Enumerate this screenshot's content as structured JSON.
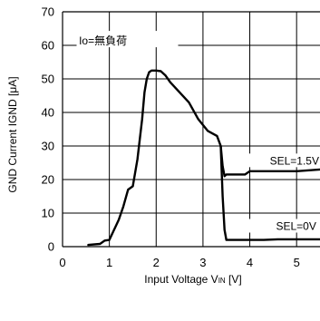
{
  "chart_data": {
    "type": "line",
    "title": "",
    "xlabel": {
      "main": "Input Voltage V",
      "sub": "IN",
      "unit": "[V]"
    },
    "ylabel": "GND Current IGND  [μA]",
    "xlim": [
      0,
      5.5
    ],
    "ylim": [
      0,
      70
    ],
    "xticks": [
      "0",
      "1",
      "2",
      "3",
      "4",
      "5"
    ],
    "yticks": [
      "0",
      "10",
      "20",
      "30",
      "40",
      "50",
      "60",
      "70"
    ],
    "grid": true,
    "annotation": "Io=無負荷",
    "series": [
      {
        "name": "SEL=1.5V",
        "x": [
          0.55,
          0.8,
          0.9,
          1.0,
          1.1,
          1.2,
          1.3,
          1.4,
          1.5,
          1.6,
          1.7,
          1.75,
          1.8,
          1.85,
          1.9,
          1.95,
          2.0,
          2.1,
          2.2,
          2.3,
          2.5,
          2.7,
          2.9,
          3.1,
          3.3,
          3.38,
          3.42,
          3.46,
          3.5,
          3.7,
          3.9,
          4.0,
          4.2,
          4.5,
          5.0,
          5.5
        ],
        "y": [
          0.5,
          0.8,
          1.8,
          2.0,
          5.0,
          8.0,
          12.0,
          17.0,
          18.0,
          26.0,
          38.0,
          46.0,
          50.0,
          52.0,
          52.5,
          52.5,
          52.5,
          52.3,
          51.0,
          49.0,
          46.0,
          43.0,
          38.0,
          34.5,
          33.0,
          30.0,
          24.0,
          21.0,
          21.5,
          21.5,
          21.5,
          22.5,
          22.5,
          22.5,
          22.5,
          23.0
        ]
      },
      {
        "name": "SEL=0V",
        "x": [
          3.38,
          3.42,
          3.46,
          3.5,
          3.7,
          4.0,
          4.3,
          4.6,
          5.0,
          5.5
        ],
        "y": [
          30.0,
          15.0,
          5.0,
          2.0,
          2.0,
          2.0,
          2.0,
          2.2,
          2.2,
          2.2
        ]
      }
    ]
  }
}
